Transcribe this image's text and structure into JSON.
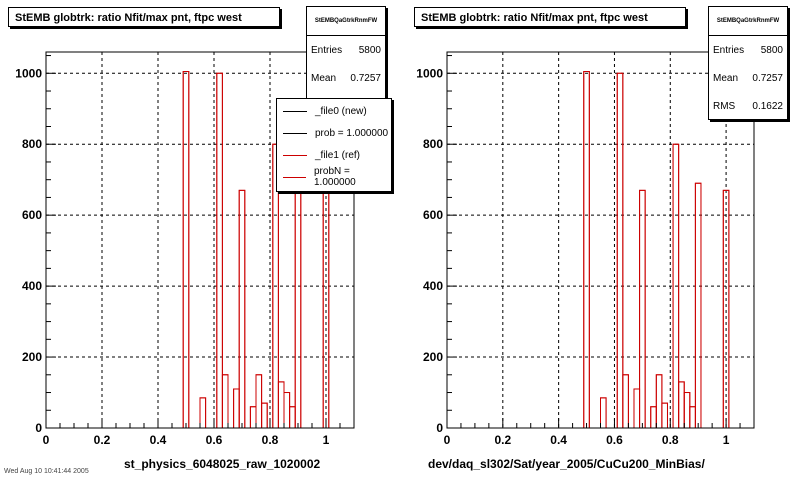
{
  "colors": {
    "new": "#000000",
    "ref": "#cc0000",
    "frame": "#000000",
    "grid": "#000000"
  },
  "panels": [
    {
      "title": "StEMB globtrk: ratio Nfit/max pnt, ftpc west",
      "stats": {
        "name": "StEMBQaGtrkRnmFW",
        "rows": [
          {
            "label": "Entries",
            "value": "5800"
          },
          {
            "label": "Mean",
            "value": "0.7257"
          }
        ]
      },
      "legend": {
        "entries": [
          {
            "text": "_file0 (new)",
            "color": "#000000"
          },
          {
            "text": "prob = 1.000000",
            "color": "#000000"
          },
          {
            "text": "_file1 (ref)",
            "color": "#cc0000"
          },
          {
            "text": "probN = 1.000000",
            "color": "#cc0000"
          }
        ]
      },
      "xtitle": "st_physics_6048025_raw_1020002"
    },
    {
      "title": "StEMB globtrk: ratio Nfit/max pnt, ftpc west",
      "stats": {
        "name": "StEMBQaGtrkRnmFW",
        "rows": [
          {
            "label": "Entries",
            "value": "5800"
          },
          {
            "label": "Mean",
            "value": "0.7257"
          },
          {
            "label": "RMS",
            "value": "0.1622"
          }
        ]
      },
      "xtitle": "dev/daq_sl302/Sat/year_2005/CuCu200_MinBias/"
    }
  ],
  "footer": "Wed Aug 10 10:41:44 2005",
  "chart_data": [
    {
      "type": "histogram",
      "title": "StEMB globtrk: ratio Nfit/max pnt, ftpc west",
      "xlabel": "st_physics_6048025_raw_1020002",
      "xlim": [
        0,
        1.1
      ],
      "ylim": [
        0,
        1060
      ],
      "xticks": [
        0,
        0.2,
        0.4,
        0.6,
        0.8,
        1
      ],
      "yticks": [
        0,
        200,
        400,
        600,
        800,
        1000
      ],
      "grid": true,
      "legend_position": "top-right",
      "series": [
        {
          "name": "_file1 (ref)",
          "bars": [
            {
              "x0": 0.49,
              "x1": 0.51,
              "y": 1005
            },
            {
              "x0": 0.55,
              "x1": 0.57,
              "y": 85
            },
            {
              "x0": 0.61,
              "x1": 0.63,
              "y": 1000
            },
            {
              "x0": 0.63,
              "x1": 0.65,
              "y": 150
            },
            {
              "x0": 0.67,
              "x1": 0.69,
              "y": 110
            },
            {
              "x0": 0.69,
              "x1": 0.71,
              "y": 670
            },
            {
              "x0": 0.73,
              "x1": 0.75,
              "y": 60
            },
            {
              "x0": 0.75,
              "x1": 0.77,
              "y": 150
            },
            {
              "x0": 0.77,
              "x1": 0.79,
              "y": 70
            },
            {
              "x0": 0.81,
              "x1": 0.83,
              "y": 800
            },
            {
              "x0": 0.83,
              "x1": 0.85,
              "y": 130
            },
            {
              "x0": 0.85,
              "x1": 0.87,
              "y": 100
            },
            {
              "x0": 0.87,
              "x1": 0.89,
              "y": 60
            },
            {
              "x0": 0.89,
              "x1": 0.91,
              "y": 700
            },
            {
              "x0": 0.99,
              "x1": 1.01,
              "y": 670
            }
          ]
        }
      ]
    },
    {
      "type": "histogram",
      "title": "StEMB globtrk: ratio Nfit/max pnt, ftpc west",
      "xlabel": "dev/daq_sl302/Sat/year_2005/CuCu200_MinBias/",
      "xlim": [
        0,
        1.1
      ],
      "ylim": [
        0,
        1060
      ],
      "xticks": [
        0,
        0.2,
        0.4,
        0.6,
        0.8,
        1
      ],
      "yticks": [
        0,
        200,
        400,
        600,
        800,
        1000
      ],
      "grid": true,
      "series": [
        {
          "name": "",
          "bars": [
            {
              "x0": 0.49,
              "x1": 0.51,
              "y": 1005
            },
            {
              "x0": 0.55,
              "x1": 0.57,
              "y": 85
            },
            {
              "x0": 0.61,
              "x1": 0.63,
              "y": 1000
            },
            {
              "x0": 0.63,
              "x1": 0.65,
              "y": 150
            },
            {
              "x0": 0.67,
              "x1": 0.69,
              "y": 110
            },
            {
              "x0": 0.69,
              "x1": 0.71,
              "y": 670
            },
            {
              "x0": 0.73,
              "x1": 0.75,
              "y": 60
            },
            {
              "x0": 0.75,
              "x1": 0.77,
              "y": 150
            },
            {
              "x0": 0.77,
              "x1": 0.79,
              "y": 70
            },
            {
              "x0": 0.81,
              "x1": 0.83,
              "y": 800
            },
            {
              "x0": 0.83,
              "x1": 0.85,
              "y": 130
            },
            {
              "x0": 0.85,
              "x1": 0.87,
              "y": 100
            },
            {
              "x0": 0.87,
              "x1": 0.89,
              "y": 60
            },
            {
              "x0": 0.89,
              "x1": 0.91,
              "y": 690
            },
            {
              "x0": 0.99,
              "x1": 1.01,
              "y": 670
            }
          ]
        }
      ]
    }
  ]
}
